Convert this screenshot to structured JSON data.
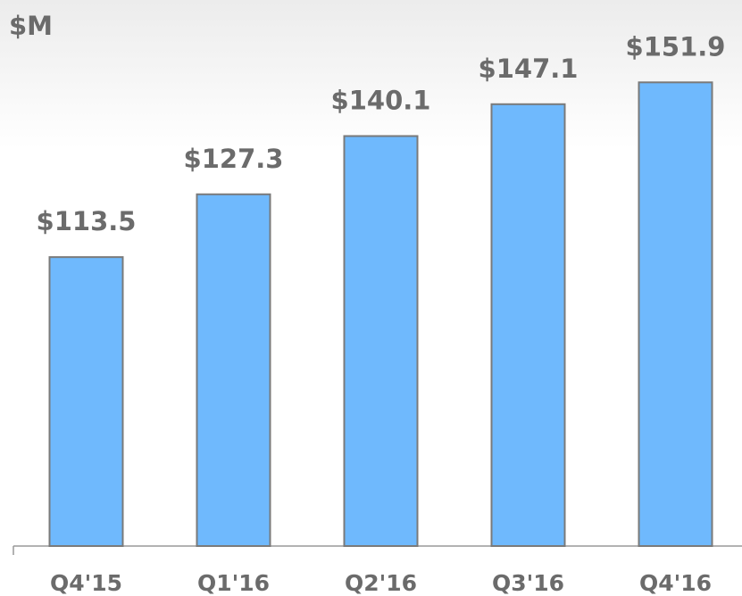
{
  "chart_data": {
    "type": "bar",
    "y_label": "$M",
    "categories": [
      "Q4'15",
      "Q1'16",
      "Q2'16",
      "Q3'16",
      "Q4'16"
    ],
    "values": [
      113.5,
      127.3,
      140.1,
      147.1,
      151.9
    ],
    "value_labels": [
      "$113.5",
      "$127.3",
      "$140.1",
      "$147.1",
      "$151.9"
    ],
    "color": "#6fb9fd",
    "ylim": [
      50,
      170
    ]
  }
}
